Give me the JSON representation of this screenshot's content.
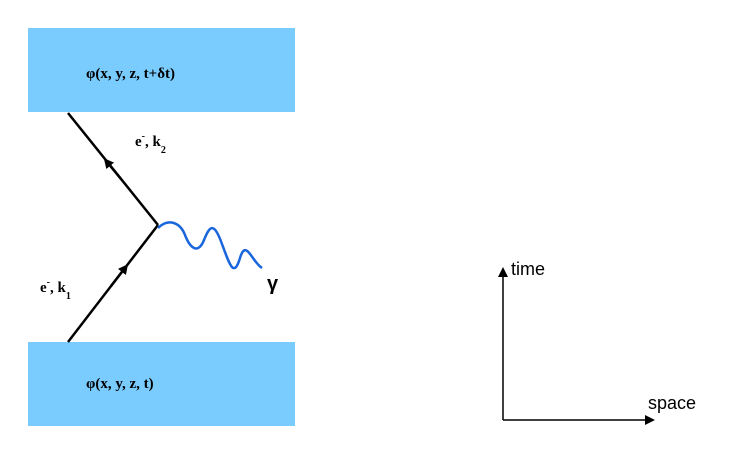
{
  "diagram": {
    "top_state": "φ(x, y, z, t+δt)",
    "bottom_state": "φ(x, y, z, t)",
    "outgoing_electron": {
      "particle": "e",
      "charge": "-",
      "momentum": ", k",
      "index": "2"
    },
    "incoming_electron": {
      "particle": "e",
      "charge": "-",
      "momentum": ", k",
      "index": "1"
    },
    "photon": "γ",
    "time_axis": "time",
    "space_axis": "space"
  }
}
